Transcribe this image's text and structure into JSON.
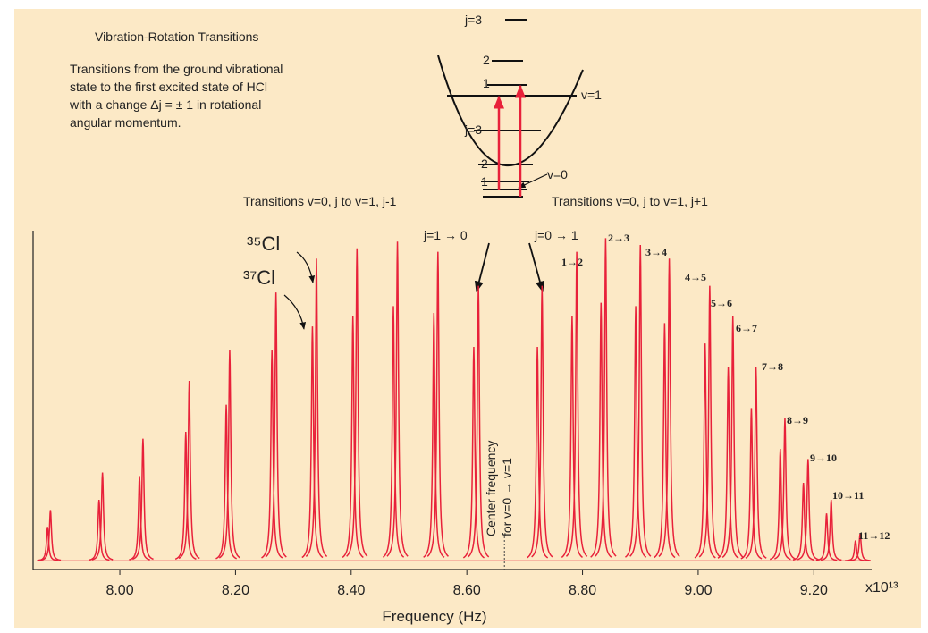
{
  "chart_data": {
    "type": "spectrum",
    "title": "Vibration-Rotation Transitions",
    "description": [
      "Transitions from the ground vibrational",
      "state to the first excited state of HCl",
      "with a change Δj = ± 1  in rotational",
      "angular momentum."
    ],
    "branch_titles": [
      "Transitions v=0, j to v=1, j-1",
      "Transitions v=0, j to v=1, j+1"
    ],
    "central_transitions": [
      "j=1 → 0",
      "j=0 → 1"
    ],
    "center_label": [
      "Center frequency",
      "for v=0 → v=1"
    ],
    "center_frequency": 8.665,
    "r_branch_labels": [
      "1→2",
      "2→3",
      "3→4",
      "4→5",
      "5→6",
      "6→7",
      "7→8",
      "8→9",
      "9→10",
      "10→11",
      "11→12"
    ],
    "levels": [
      "j=3",
      "2",
      "1",
      "v=1",
      "j=3",
      "2",
      "1",
      "v=0"
    ],
    "xlabel": "Frequency (Hz)",
    "x_multiplier": "x10¹³",
    "xlim": [
      7.85,
      9.3
    ],
    "xticks": [
      {
        "value": 8.0,
        "label": "8.00"
      },
      {
        "value": 8.2,
        "label": "8.20"
      },
      {
        "value": 8.4,
        "label": "8.40"
      },
      {
        "value": 8.6,
        "label": "8.60"
      },
      {
        "value": 8.8,
        "label": "8.80"
      },
      {
        "value": 9.0,
        "label": "9.00"
      },
      {
        "value": 9.2,
        "label": "9.20"
      }
    ],
    "ylim": [
      0,
      1
    ],
    "series": [
      {
        "name": "³⁵Cl",
        "color": "#e8213a",
        "x": [
          7.88,
          7.97,
          8.04,
          8.12,
          8.19,
          8.27,
          8.34,
          8.41,
          8.48,
          8.55,
          8.62,
          8.73,
          8.79,
          8.84,
          8.9,
          8.95,
          9.02,
          9.06,
          9.1,
          9.15,
          9.19,
          9.23,
          9.28
        ],
        "values": [
          0.15,
          0.26,
          0.36,
          0.53,
          0.62,
          0.79,
          0.89,
          0.92,
          0.94,
          0.91,
          0.81,
          0.81,
          0.91,
          0.95,
          0.93,
          0.89,
          0.81,
          0.72,
          0.57,
          0.42,
          0.3,
          0.18,
          0.08
        ]
      },
      {
        "name": "³⁷Cl",
        "color": "#e8213a",
        "x": [
          7.875,
          7.964,
          8.034,
          8.114,
          8.184,
          8.263,
          8.333,
          8.403,
          8.473,
          8.543,
          8.612,
          8.722,
          8.782,
          8.832,
          8.892,
          8.942,
          9.012,
          9.052,
          9.092,
          9.142,
          9.182,
          9.222,
          9.272
        ],
        "values": [
          0.1,
          0.18,
          0.25,
          0.38,
          0.46,
          0.62,
          0.69,
          0.72,
          0.75,
          0.73,
          0.63,
          0.63,
          0.72,
          0.76,
          0.75,
          0.7,
          0.64,
          0.57,
          0.45,
          0.33,
          0.23,
          0.14,
          0.06
        ]
      }
    ]
  }
}
